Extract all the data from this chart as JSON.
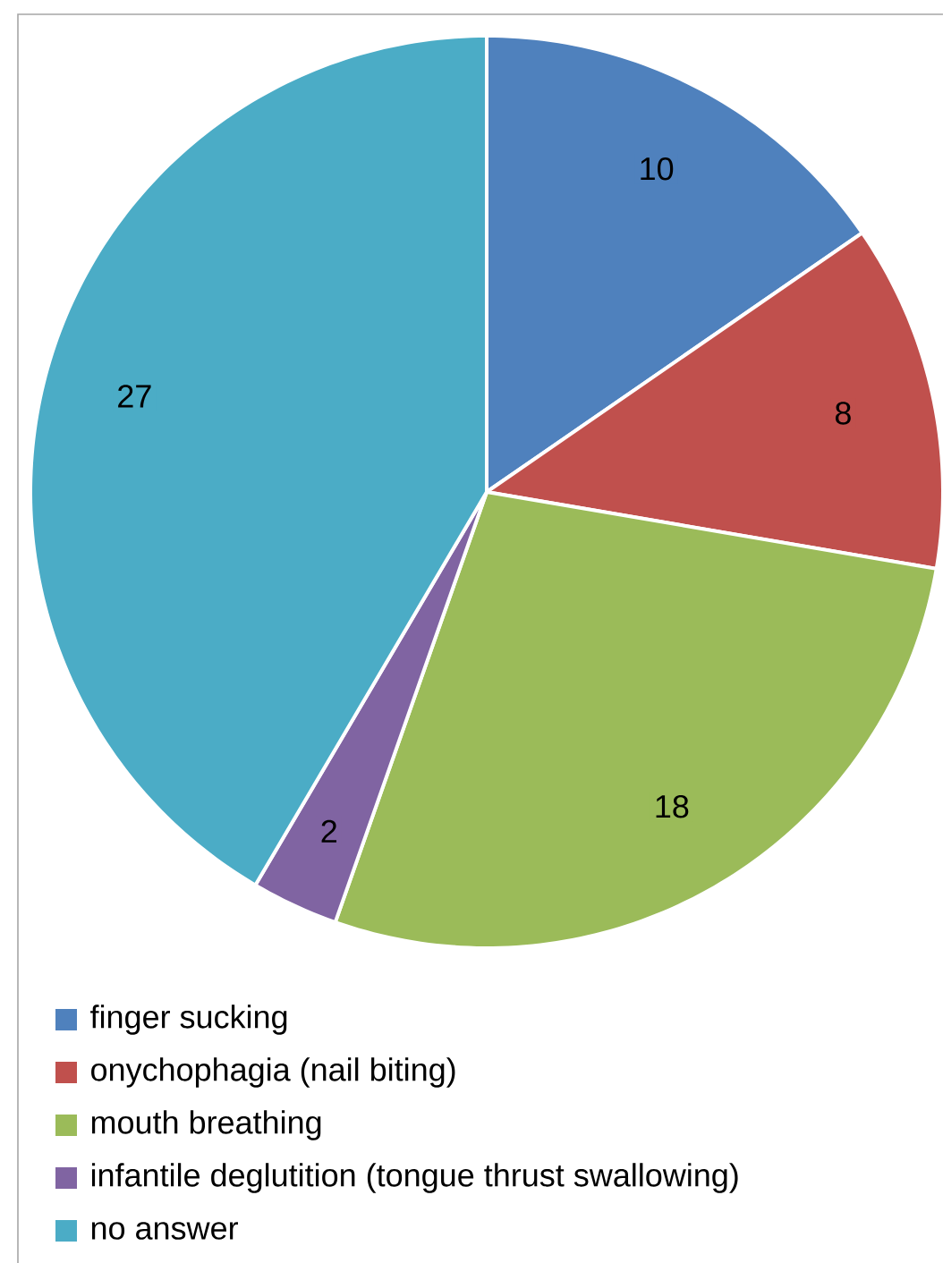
{
  "chart_data": {
    "type": "pie",
    "categories": [
      "finger sucking",
      "onychophagia (nail biting)",
      "mouth breathing",
      "infantile deglutition (tongue thrust swallowing)",
      "no answer"
    ],
    "values": [
      10,
      8,
      18,
      2,
      27
    ],
    "colors": [
      "#4f81bd",
      "#c0504d",
      "#9bbb59",
      "#8064a2",
      "#4bacc6"
    ],
    "data_labels": true,
    "legend": "bottom"
  }
}
